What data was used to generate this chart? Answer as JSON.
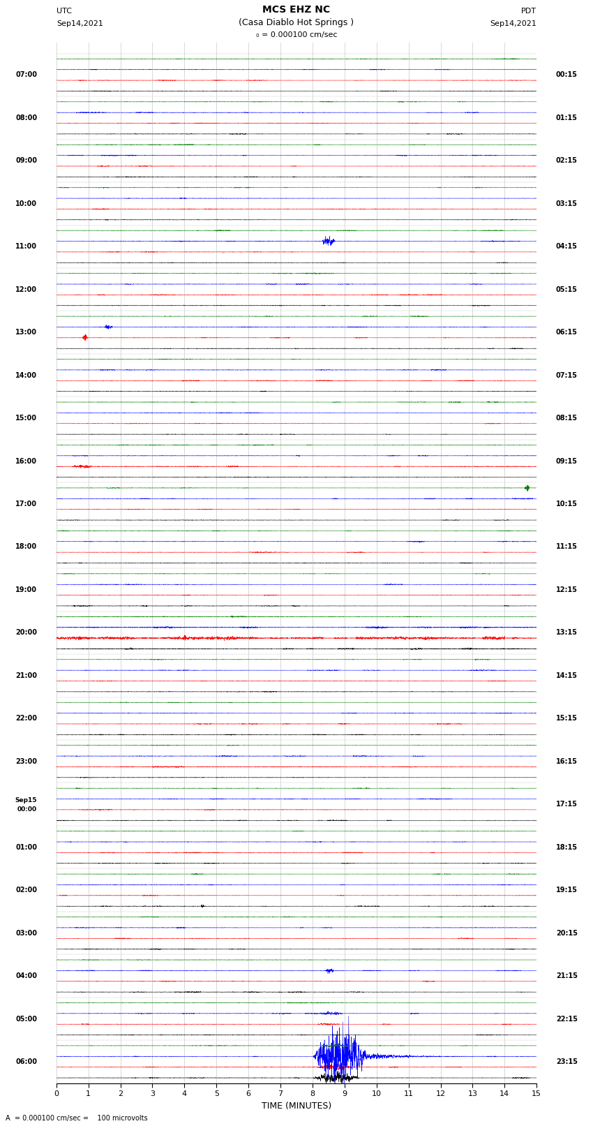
{
  "title_line1": "MCS EHZ NC",
  "title_line2": "(Casa Diablo Hot Springs )",
  "scale_label": "= 0.000100 cm/sec",
  "left_label_top": "UTC",
  "left_label_date": "Sep14,2021",
  "right_label_top": "PDT",
  "right_label_date": "Sep14,2021",
  "bottom_label": "TIME (MINUTES)",
  "bottom_note": "A  = 0.000100 cm/sec =    100 microvolts",
  "xlim": [
    0,
    15
  ],
  "xticks": [
    0,
    1,
    2,
    3,
    4,
    5,
    6,
    7,
    8,
    9,
    10,
    11,
    12,
    13,
    14,
    15
  ],
  "bg_color": "#ffffff",
  "trace_color_order": [
    "black",
    "red",
    "blue",
    "green"
  ],
  "interval_utc": [
    "07:00",
    "08:00",
    "09:00",
    "10:00",
    "11:00",
    "12:00",
    "13:00",
    "14:00",
    "15:00",
    "16:00",
    "17:00",
    "18:00",
    "19:00",
    "20:00",
    "21:00",
    "22:00",
    "23:00",
    "Sep15\n00:00",
    "01:00",
    "02:00",
    "03:00",
    "04:00",
    "05:00",
    "06:00"
  ],
  "interval_pdt": [
    "00:15",
    "01:15",
    "02:15",
    "03:15",
    "04:15",
    "05:15",
    "06:15",
    "07:15",
    "08:15",
    "09:15",
    "10:15",
    "11:15",
    "12:15",
    "13:15",
    "14:15",
    "15:15",
    "16:15",
    "17:15",
    "18:15",
    "19:15",
    "20:15",
    "21:15",
    "22:15",
    "23:15"
  ],
  "seed": 42
}
